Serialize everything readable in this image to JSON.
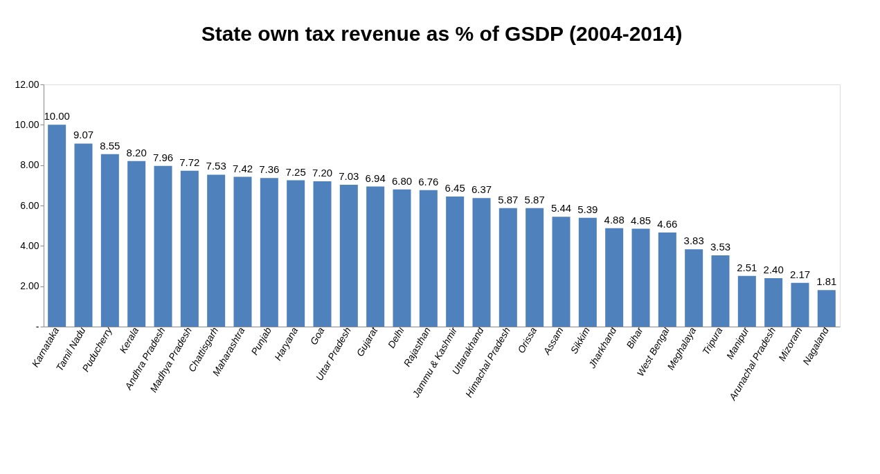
{
  "chart_data": {
    "type": "bar",
    "title": "State own tax revenue as % of GSDP (2004-2014)",
    "categories": [
      "Karnataka",
      "Tamil Nadu",
      "Puducherry",
      "Kerala",
      "Andhra Pradesh",
      "Madhya Pradesh",
      "Chattisgarh",
      "Maharashtra",
      "Punjab",
      "Haryana",
      "Goa",
      "Uttar Pradesh",
      "Gujarat",
      "Delhi",
      "Rajasthan",
      "Jammu & Kashmir",
      "Uttarakhand",
      "Himachal Pradesh",
      "Orissa",
      "Assam",
      "Sikkim",
      "Jharkhand",
      "Bihar",
      "West Bengal",
      "Meghalaya",
      "Tripura",
      "Manipur",
      "Arunachal Pradesh",
      "Mizoram",
      "Nagaland"
    ],
    "values": [
      10.0,
      9.07,
      8.55,
      8.2,
      7.96,
      7.72,
      7.53,
      7.42,
      7.36,
      7.25,
      7.2,
      7.03,
      6.94,
      6.8,
      6.76,
      6.45,
      6.37,
      5.87,
      5.87,
      5.44,
      5.39,
      4.88,
      4.85,
      4.66,
      3.83,
      3.53,
      2.51,
      2.4,
      2.17,
      1.81
    ],
    "color": "#4f81bd",
    "ylim": [
      0,
      12
    ],
    "yticks": [
      {
        "value": 0,
        "label": "-"
      },
      {
        "value": 2,
        "label": "2.00"
      },
      {
        "value": 4,
        "label": "4.00"
      },
      {
        "value": 6,
        "label": "6.00"
      },
      {
        "value": 8,
        "label": "8.00"
      },
      {
        "value": 10,
        "label": "10.00"
      },
      {
        "value": 12,
        "label": "12.00"
      }
    ],
    "value_labels": [
      "10.00",
      "9.07",
      "8.55",
      "8.20",
      "7.96",
      "7.72",
      "7.53",
      "7.42",
      "7.36",
      "7.25",
      "7.20",
      "7.03",
      "6.94",
      "6.80",
      "6.76",
      "6.45",
      "6.37",
      "5.87",
      "5.87",
      "5.44",
      "5.39",
      "4.88",
      "4.85",
      "4.66",
      "3.83",
      "3.53",
      "2.51",
      "2.40",
      "2.17",
      "1.81"
    ],
    "grid": false
  }
}
